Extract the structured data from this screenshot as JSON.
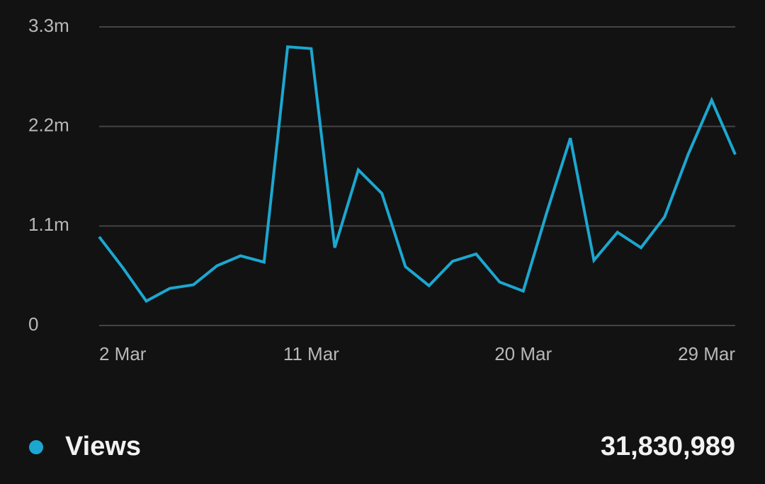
{
  "chart_data": {
    "type": "line",
    "categories": [
      "2 Mar",
      null,
      null,
      null,
      null,
      null,
      null,
      null,
      null,
      "11 Mar",
      null,
      null,
      null,
      null,
      null,
      null,
      null,
      null,
      "20 Mar",
      null,
      null,
      null,
      null,
      null,
      null,
      null,
      null,
      "29 Mar"
    ],
    "series": [
      {
        "name": "Views",
        "color": "#1ca7d0",
        "values": [
          0.98,
          0.64,
          0.27,
          0.41,
          0.45,
          0.66,
          0.77,
          0.7,
          3.08,
          3.06,
          0.86,
          1.72,
          1.46,
          0.65,
          0.44,
          0.71,
          0.79,
          0.48,
          0.38,
          1.25,
          2.07,
          0.72,
          1.03,
          0.86,
          1.2,
          1.89,
          2.49,
          1.89
        ]
      }
    ],
    "total": "31,830,989",
    "ylim": [
      0,
      3.3
    ],
    "yticks": [
      0,
      {
        "value": 1.1,
        "label": "1.1m"
      },
      {
        "value": 2.2,
        "label": "2.2m"
      },
      {
        "value": 3.3,
        "label": "3.3m"
      }
    ],
    "grid": true
  }
}
